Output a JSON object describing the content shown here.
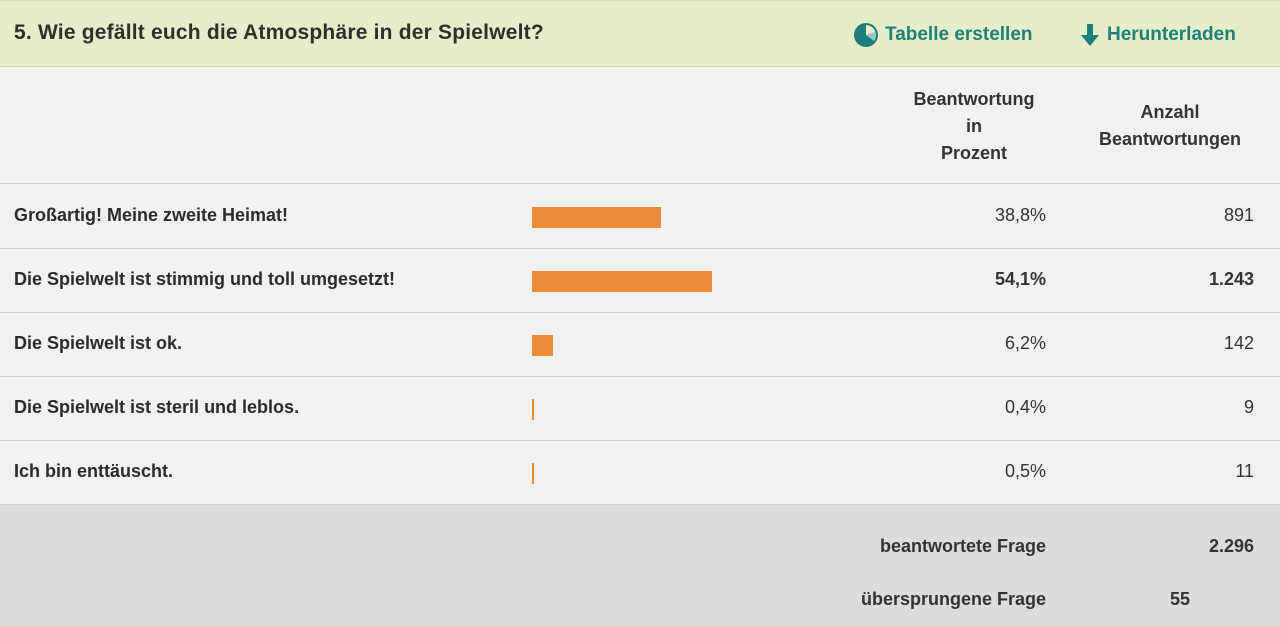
{
  "question": {
    "title": "5. Wie gefällt euch die Atmosphäre in der Spielwelt?"
  },
  "actions": {
    "table_label": "Tabelle erstellen",
    "download_label": "Herunterladen"
  },
  "columns": {
    "percent_header": [
      "Beantwortung",
      "in",
      "Prozent"
    ],
    "count_header": [
      "Anzahl",
      "Beantwortungen"
    ]
  },
  "colors": {
    "bar": "#ec8a36",
    "accent": "#1f7f7a",
    "header_bg": "#e6edc9"
  },
  "answers": [
    {
      "label": "Großartig! Meine zweite Heimat!",
      "percent": "38,8%",
      "count": "891",
      "value": 38.8,
      "highlight": false
    },
    {
      "label": "Die Spielwelt ist stimmig und toll umgesetzt!",
      "percent": "54,1%",
      "count": "1.243",
      "value": 54.1,
      "highlight": true
    },
    {
      "label": "Die Spielwelt ist ok.",
      "percent": "6,2%",
      "count": "142",
      "value": 6.2,
      "highlight": false
    },
    {
      "label": "Die Spielwelt ist steril und leblos.",
      "percent": "0,4%",
      "count": "9",
      "value": 0.4,
      "highlight": false
    },
    {
      "label": "Ich bin enttäuscht.",
      "percent": "0,5%",
      "count": "11",
      "value": 0.5,
      "highlight": false
    }
  ],
  "summary": {
    "answered_label": "beantwortete Frage",
    "answered_value": "2.296",
    "skipped_label": "übersprungene Frage",
    "skipped_value": "55"
  }
}
